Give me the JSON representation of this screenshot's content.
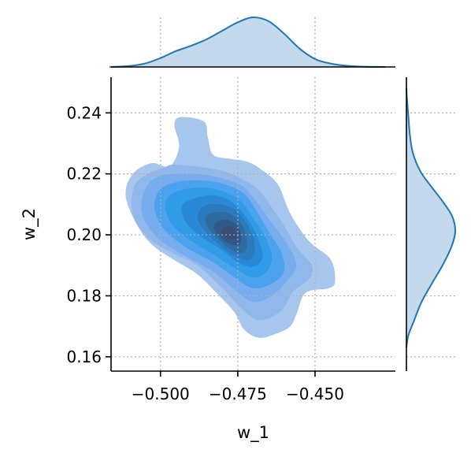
{
  "chart_data": {
    "type": "jointplot-kde",
    "title": "",
    "xlabel": "w_1",
    "ylabel": "w_2",
    "xlim": [
      -0.516,
      -0.424
    ],
    "ylim": [
      0.1553,
      0.2517
    ],
    "x_ticks": [
      -0.5,
      -0.475,
      -0.45
    ],
    "x_tick_labels": [
      "−0.500",
      "−0.475",
      "−0.450"
    ],
    "y_ticks": [
      0.16,
      0.18,
      0.2,
      0.22,
      0.24
    ],
    "y_tick_labels": [
      "0.16",
      "0.18",
      "0.20",
      "0.22",
      "0.24"
    ],
    "grid": true,
    "colors": {
      "marginal_line": "#1f77b4",
      "marginal_fill": "#c4d9ec",
      "contour_levels": [
        "#a7c6ee",
        "#90b8eb",
        "#77adef",
        "#4ba3ee",
        "#2f9be9",
        "#2989d6",
        "#2c79bb",
        "#2f6aa0",
        "#33598a",
        "#3a4d75"
      ]
    },
    "x_marginal_density": [
      {
        "x": -0.5165,
        "d": 0.0
      },
      {
        "x": -0.51,
        "d": 0.02
      },
      {
        "x": -0.505,
        "d": 0.07
      },
      {
        "x": -0.5,
        "d": 0.18
      },
      {
        "x": -0.495,
        "d": 0.32
      },
      {
        "x": -0.49,
        "d": 0.43
      },
      {
        "x": -0.485,
        "d": 0.56
      },
      {
        "x": -0.48,
        "d": 0.73
      },
      {
        "x": -0.475,
        "d": 0.9
      },
      {
        "x": -0.47,
        "d": 1.0
      },
      {
        "x": -0.465,
        "d": 0.92
      },
      {
        "x": -0.46,
        "d": 0.67
      },
      {
        "x": -0.455,
        "d": 0.37
      },
      {
        "x": -0.45,
        "d": 0.16
      },
      {
        "x": -0.445,
        "d": 0.07
      },
      {
        "x": -0.44,
        "d": 0.025
      },
      {
        "x": -0.435,
        "d": 0.008
      },
      {
        "x": -0.4273,
        "d": 0.0
      }
    ],
    "y_marginal_density": [
      {
        "y": 0.163,
        "d": 0.0
      },
      {
        "y": 0.167,
        "d": 0.04
      },
      {
        "y": 0.172,
        "d": 0.16
      },
      {
        "y": 0.178,
        "d": 0.31
      },
      {
        "y": 0.184,
        "d": 0.52
      },
      {
        "y": 0.19,
        "d": 0.74
      },
      {
        "y": 0.196,
        "d": 0.92
      },
      {
        "y": 0.201,
        "d": 1.0
      },
      {
        "y": 0.206,
        "d": 0.94
      },
      {
        "y": 0.211,
        "d": 0.74
      },
      {
        "y": 0.216,
        "d": 0.5
      },
      {
        "y": 0.221,
        "d": 0.28
      },
      {
        "y": 0.227,
        "d": 0.13
      },
      {
        "y": 0.233,
        "d": 0.07
      },
      {
        "y": 0.239,
        "d": 0.04
      },
      {
        "y": 0.245,
        "d": 0.01
      },
      {
        "y": 0.248,
        "d": 0.0
      }
    ],
    "contours": [
      [
        [
          -0.4936,
          0.2386
        ],
        [
          -0.486,
          0.2372
        ],
        [
          -0.4847,
          0.232
        ],
        [
          -0.483,
          0.2263
        ],
        [
          -0.478,
          0.225
        ],
        [
          -0.472,
          0.224
        ],
        [
          -0.4675,
          0.2215
        ],
        [
          -0.462,
          0.2165
        ],
        [
          -0.458,
          0.207
        ],
        [
          -0.452,
          0.198
        ],
        [
          -0.445,
          0.192
        ],
        [
          -0.4435,
          0.185
        ],
        [
          -0.4455,
          0.1825
        ],
        [
          -0.453,
          0.181
        ],
        [
          -0.456,
          0.174
        ],
        [
          -0.458,
          0.17
        ],
        [
          -0.462,
          0.1678
        ],
        [
          -0.468,
          0.1662
        ],
        [
          -0.473,
          0.169
        ],
        [
          -0.476,
          0.1745
        ],
        [
          -0.481,
          0.18
        ],
        [
          -0.488,
          0.187
        ],
        [
          -0.496,
          0.192
        ],
        [
          -0.503,
          0.197
        ],
        [
          -0.508,
          0.204
        ],
        [
          -0.5113,
          0.213
        ],
        [
          -0.509,
          0.22
        ],
        [
          -0.503,
          0.2235
        ],
        [
          -0.497,
          0.2225
        ],
        [
          -0.494,
          0.229
        ],
        [
          -0.4955,
          0.236
        ]
      ],
      [
        [
          -0.499,
          0.222
        ],
        [
          -0.496,
          0.223
        ],
        [
          -0.489,
          0.2225
        ],
        [
          -0.48,
          0.221
        ],
        [
          -0.474,
          0.2185
        ],
        [
          -0.4685,
          0.215
        ],
        [
          -0.464,
          0.209
        ],
        [
          -0.46,
          0.203
        ],
        [
          -0.456,
          0.196
        ],
        [
          -0.451,
          0.19
        ],
        [
          -0.452,
          0.1855
        ],
        [
          -0.457,
          0.1815
        ],
        [
          -0.461,
          0.175
        ],
        [
          -0.468,
          0.172
        ],
        [
          -0.474,
          0.176
        ],
        [
          -0.48,
          0.1825
        ],
        [
          -0.488,
          0.19
        ],
        [
          -0.496,
          0.194
        ],
        [
          -0.504,
          0.199
        ],
        [
          -0.509,
          0.207
        ],
        [
          -0.5085,
          0.216
        ],
        [
          -0.504,
          0.22
        ]
      ],
      [
        [
          -0.496,
          0.22
        ],
        [
          -0.488,
          0.22
        ],
        [
          -0.48,
          0.2185
        ],
        [
          -0.4735,
          0.216
        ],
        [
          -0.469,
          0.211
        ],
        [
          -0.464,
          0.204
        ],
        [
          -0.459,
          0.197
        ],
        [
          -0.456,
          0.19
        ],
        [
          -0.459,
          0.185
        ],
        [
          -0.464,
          0.18
        ],
        [
          -0.47,
          0.178
        ],
        [
          -0.476,
          0.182
        ],
        [
          -0.483,
          0.188
        ],
        [
          -0.492,
          0.193
        ],
        [
          -0.501,
          0.199
        ],
        [
          -0.506,
          0.207
        ],
        [
          -0.505,
          0.215
        ],
        [
          -0.501,
          0.219
        ]
      ],
      [
        [
          -0.494,
          0.2175
        ],
        [
          -0.486,
          0.2178
        ],
        [
          -0.479,
          0.2165
        ],
        [
          -0.473,
          0.2135
        ],
        [
          -0.469,
          0.208
        ],
        [
          -0.465,
          0.201
        ],
        [
          -0.461,
          0.1945
        ],
        [
          -0.46,
          0.188
        ],
        [
          -0.464,
          0.184
        ],
        [
          -0.47,
          0.1825
        ],
        [
          -0.476,
          0.186
        ],
        [
          -0.483,
          0.191
        ],
        [
          -0.492,
          0.196
        ],
        [
          -0.499,
          0.202
        ],
        [
          -0.502,
          0.209
        ],
        [
          -0.5,
          0.215
        ]
      ],
      [
        [
          -0.492,
          0.215
        ],
        [
          -0.485,
          0.2155
        ],
        [
          -0.479,
          0.214
        ],
        [
          -0.474,
          0.211
        ],
        [
          -0.47,
          0.2055
        ],
        [
          -0.466,
          0.199
        ],
        [
          -0.464,
          0.193
        ],
        [
          -0.4655,
          0.188
        ],
        [
          -0.47,
          0.186
        ],
        [
          -0.476,
          0.189
        ],
        [
          -0.482,
          0.193
        ],
        [
          -0.49,
          0.198
        ],
        [
          -0.496,
          0.203
        ],
        [
          -0.4985,
          0.209
        ],
        [
          -0.497,
          0.213
        ]
      ],
      [
        [
          -0.489,
          0.212
        ],
        [
          -0.483,
          0.213
        ],
        [
          -0.478,
          0.2115
        ],
        [
          -0.474,
          0.208
        ],
        [
          -0.4705,
          0.203
        ],
        [
          -0.468,
          0.1975
        ],
        [
          -0.467,
          0.1925
        ],
        [
          -0.47,
          0.1895
        ],
        [
          -0.475,
          0.191
        ],
        [
          -0.48,
          0.195
        ],
        [
          -0.487,
          0.1995
        ],
        [
          -0.492,
          0.2045
        ],
        [
          -0.493,
          0.2095
        ]
      ],
      [
        [
          -0.486,
          0.2095
        ],
        [
          -0.481,
          0.21
        ],
        [
          -0.4765,
          0.2085
        ],
        [
          -0.473,
          0.205
        ],
        [
          -0.4705,
          0.2005
        ],
        [
          -0.4695,
          0.1955
        ],
        [
          -0.471,
          0.192
        ],
        [
          -0.475,
          0.1925
        ],
        [
          -0.48,
          0.196
        ],
        [
          -0.485,
          0.2005
        ],
        [
          -0.488,
          0.2055
        ]
      ],
      [
        [
          -0.484,
          0.207
        ],
        [
          -0.4795,
          0.2075
        ],
        [
          -0.4755,
          0.2055
        ],
        [
          -0.473,
          0.202
        ],
        [
          -0.472,
          0.198
        ],
        [
          -0.4728,
          0.1945
        ],
        [
          -0.476,
          0.1945
        ],
        [
          -0.48,
          0.1975
        ],
        [
          -0.484,
          0.2015
        ],
        [
          -0.4855,
          0.205
        ]
      ],
      [
        [
          -0.4815,
          0.2045
        ],
        [
          -0.478,
          0.2048
        ],
        [
          -0.4752,
          0.203
        ],
        [
          -0.474,
          0.2
        ],
        [
          -0.4742,
          0.197
        ],
        [
          -0.477,
          0.1968
        ],
        [
          -0.4805,
          0.199
        ],
        [
          -0.4828,
          0.202
        ]
      ],
      [
        [
          -0.4795,
          0.2025
        ],
        [
          -0.4772,
          0.2027
        ],
        [
          -0.4758,
          0.201
        ],
        [
          -0.4756,
          0.199
        ],
        [
          -0.4776,
          0.1985
        ],
        [
          -0.4798,
          0.2
        ],
        [
          -0.4805,
          0.2015
        ]
      ]
    ]
  }
}
